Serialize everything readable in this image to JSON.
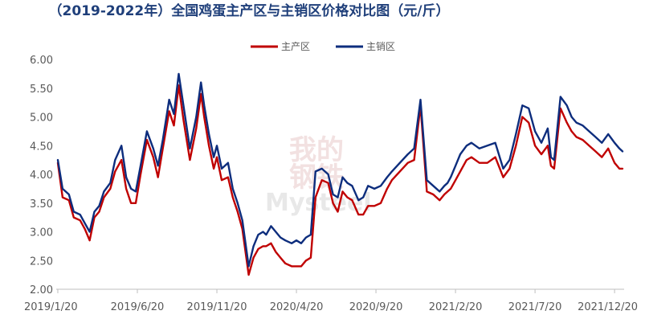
{
  "chart_data": {
    "type": "line",
    "title": "（2019-2022年）全国鸡蛋主产区与主销区价格对比图（元/斤）",
    "xlabel": "",
    "ylabel": "",
    "ylim": [
      2.0,
      6.0
    ],
    "yticks": [
      "2.00",
      "2.50",
      "3.00",
      "3.50",
      "4.00",
      "4.50",
      "5.00",
      "5.50",
      "6.00"
    ],
    "xticks": [
      "2019/1/20",
      "2019/6/20",
      "2019/11/20",
      "2020/4/20",
      "2020/9/20",
      "2021/2/20",
      "2021/7/20",
      "2021/12/20"
    ],
    "xtick_months": [
      0,
      5,
      10,
      15,
      20,
      25,
      30,
      35
    ],
    "x_range_months": [
      -0.1,
      35.6
    ],
    "legend_position": "top",
    "grid": false,
    "watermark": [
      "我的",
      "钢铁",
      "Mysteel"
    ],
    "series": [
      {
        "name": "主产区",
        "color": "#c00000",
        "x": [
          0,
          0.3,
          0.7,
          1,
          1.4,
          1.7,
          2,
          2.3,
          2.6,
          2.9,
          3.3,
          3.6,
          4,
          4.3,
          4.6,
          4.9,
          5.2,
          5.6,
          6,
          6.3,
          6.6,
          7,
          7.3,
          7.6,
          7.9,
          8.3,
          8.7,
          9,
          9.2,
          9.5,
          9.8,
          10,
          10.3,
          10.7,
          11,
          11.3,
          11.6,
          12,
          12.3,
          12.6,
          12.9,
          13.1,
          13.4,
          13.7,
          14,
          14.3,
          14.7,
          15,
          15.3,
          15.6,
          15.9,
          16.2,
          16.6,
          17,
          17.3,
          17.6,
          17.9,
          18.2,
          18.5,
          18.9,
          19.2,
          19.5,
          19.9,
          20.3,
          20.7,
          21,
          21.5,
          22,
          22.4,
          22.8,
          23.2,
          23.6,
          24,
          24.3,
          24.5,
          24.7,
          25,
          25.3,
          25.7,
          26,
          26.5,
          27,
          27.5,
          28,
          28.4,
          28.8,
          29.2,
          29.6,
          30,
          30.4,
          30.8,
          31,
          31.2,
          31.6,
          32,
          32.3,
          32.6,
          33,
          33.4,
          33.8,
          34.2,
          34.6,
          35,
          35.3,
          35.5
        ],
        "values": [
          4.2,
          3.6,
          3.55,
          3.25,
          3.2,
          3.05,
          2.85,
          3.25,
          3.35,
          3.6,
          3.75,
          4.05,
          4.25,
          3.75,
          3.5,
          3.5,
          4.0,
          4.6,
          4.3,
          3.95,
          4.45,
          5.1,
          4.85,
          5.55,
          4.95,
          4.25,
          4.8,
          5.4,
          5.0,
          4.5,
          4.1,
          4.3,
          3.9,
          3.95,
          3.6,
          3.35,
          3.05,
          2.25,
          2.55,
          2.7,
          2.75,
          2.75,
          2.8,
          2.65,
          2.55,
          2.45,
          2.4,
          2.4,
          2.4,
          2.5,
          2.55,
          3.6,
          3.9,
          3.85,
          3.5,
          3.35,
          3.7,
          3.6,
          3.55,
          3.3,
          3.3,
          3.45,
          3.45,
          3.5,
          3.75,
          3.9,
          4.05,
          4.2,
          4.25,
          5.2,
          3.7,
          3.65,
          3.55,
          3.65,
          3.7,
          3.75,
          3.9,
          4.05,
          4.25,
          4.3,
          4.2,
          4.2,
          4.3,
          3.95,
          4.1,
          4.5,
          5.0,
          4.9,
          4.5,
          4.35,
          4.5,
          4.15,
          4.1,
          5.15,
          4.9,
          4.75,
          4.65,
          4.6,
          4.5,
          4.4,
          4.3,
          4.45,
          4.2,
          4.1,
          4.1
        ]
      },
      {
        "name": "主销区",
        "color": "#0d2d7d",
        "x": [
          0,
          0.3,
          0.7,
          1,
          1.4,
          1.7,
          2,
          2.3,
          2.6,
          2.9,
          3.3,
          3.6,
          4,
          4.3,
          4.6,
          4.9,
          5.2,
          5.6,
          6,
          6.3,
          6.6,
          7,
          7.3,
          7.6,
          7.9,
          8.3,
          8.7,
          9,
          9.2,
          9.5,
          9.8,
          10,
          10.3,
          10.7,
          11,
          11.3,
          11.6,
          12,
          12.3,
          12.6,
          12.9,
          13.1,
          13.4,
          13.7,
          14,
          14.3,
          14.7,
          15,
          15.3,
          15.6,
          15.9,
          16.2,
          16.6,
          17,
          17.3,
          17.6,
          17.9,
          18.2,
          18.5,
          18.9,
          19.2,
          19.5,
          19.9,
          20.3,
          20.7,
          21,
          21.5,
          22,
          22.4,
          22.8,
          23.2,
          23.6,
          24,
          24.3,
          24.5,
          24.7,
          25,
          25.3,
          25.7,
          26,
          26.5,
          27,
          27.5,
          28,
          28.4,
          28.8,
          29.2,
          29.6,
          30,
          30.4,
          30.8,
          31,
          31.2,
          31.6,
          32,
          32.3,
          32.6,
          33,
          33.4,
          33.8,
          34.2,
          34.6,
          35,
          35.3,
          35.5
        ],
        "values": [
          4.25,
          3.75,
          3.65,
          3.35,
          3.3,
          3.15,
          3.0,
          3.35,
          3.45,
          3.7,
          3.85,
          4.25,
          4.5,
          3.95,
          3.75,
          3.7,
          4.15,
          4.75,
          4.45,
          4.15,
          4.6,
          5.3,
          5.05,
          5.75,
          5.2,
          4.45,
          5.0,
          5.6,
          5.2,
          4.7,
          4.3,
          4.5,
          4.1,
          4.2,
          3.75,
          3.5,
          3.2,
          2.4,
          2.75,
          2.95,
          3.0,
          2.95,
          3.1,
          3.0,
          2.9,
          2.85,
          2.8,
          2.85,
          2.8,
          2.9,
          2.95,
          4.05,
          4.1,
          4.0,
          3.65,
          3.6,
          3.95,
          3.85,
          3.8,
          3.55,
          3.6,
          3.8,
          3.75,
          3.8,
          3.95,
          4.05,
          4.2,
          4.35,
          4.45,
          5.3,
          3.9,
          3.8,
          3.7,
          3.8,
          3.85,
          3.95,
          4.15,
          4.35,
          4.5,
          4.55,
          4.45,
          4.5,
          4.55,
          4.1,
          4.25,
          4.7,
          5.2,
          5.15,
          4.75,
          4.55,
          4.8,
          4.3,
          4.25,
          5.35,
          5.2,
          5.0,
          4.9,
          4.85,
          4.75,
          4.65,
          4.55,
          4.7,
          4.55,
          4.45,
          4.4
        ]
      }
    ]
  }
}
